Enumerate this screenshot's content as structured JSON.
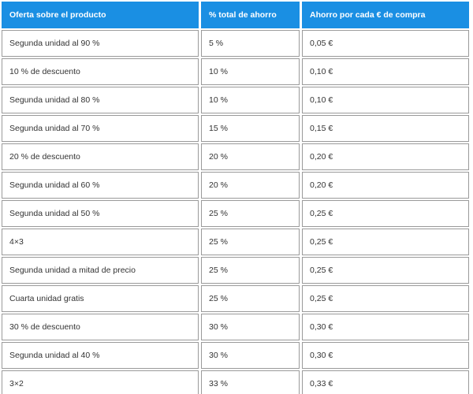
{
  "colors": {
    "header_background": "#1a8fe3",
    "header_text": "#ffffff",
    "cell_border": "#9a9a9a",
    "cell_text": "#333333"
  },
  "table": {
    "headers": [
      "Oferta sobre el producto",
      "% total de ahorro",
      "Ahorro por cada € de compra"
    ],
    "rows": [
      [
        "Segunda unidad al 90 %",
        "5 %",
        "0,05 €"
      ],
      [
        "10 % de descuento",
        "10 %",
        "0,10 €"
      ],
      [
        "Segunda unidad al 80 %",
        "10 %",
        "0,10 €"
      ],
      [
        "Segunda unidad al 70 %",
        "15 %",
        "0,15 €"
      ],
      [
        "20 % de descuento",
        "20 %",
        "0,20 €"
      ],
      [
        "Segunda unidad al 60 %",
        "20 %",
        "0,20 €"
      ],
      [
        "Segunda unidad al 50 %",
        "25 %",
        "0,25 €"
      ],
      [
        "4×3",
        "25 %",
        "0,25 €"
      ],
      [
        "Segunda unidad a mitad de precio",
        "25 %",
        "0,25 €"
      ],
      [
        "Cuarta unidad gratis",
        "25 %",
        "0,25 €"
      ],
      [
        "30 % de descuento",
        "30 %",
        "0,30 €"
      ],
      [
        "Segunda unidad al 40 %",
        "30 %",
        "0,30 €"
      ],
      [
        "3×2",
        "33 %",
        "0,33 €"
      ]
    ]
  }
}
